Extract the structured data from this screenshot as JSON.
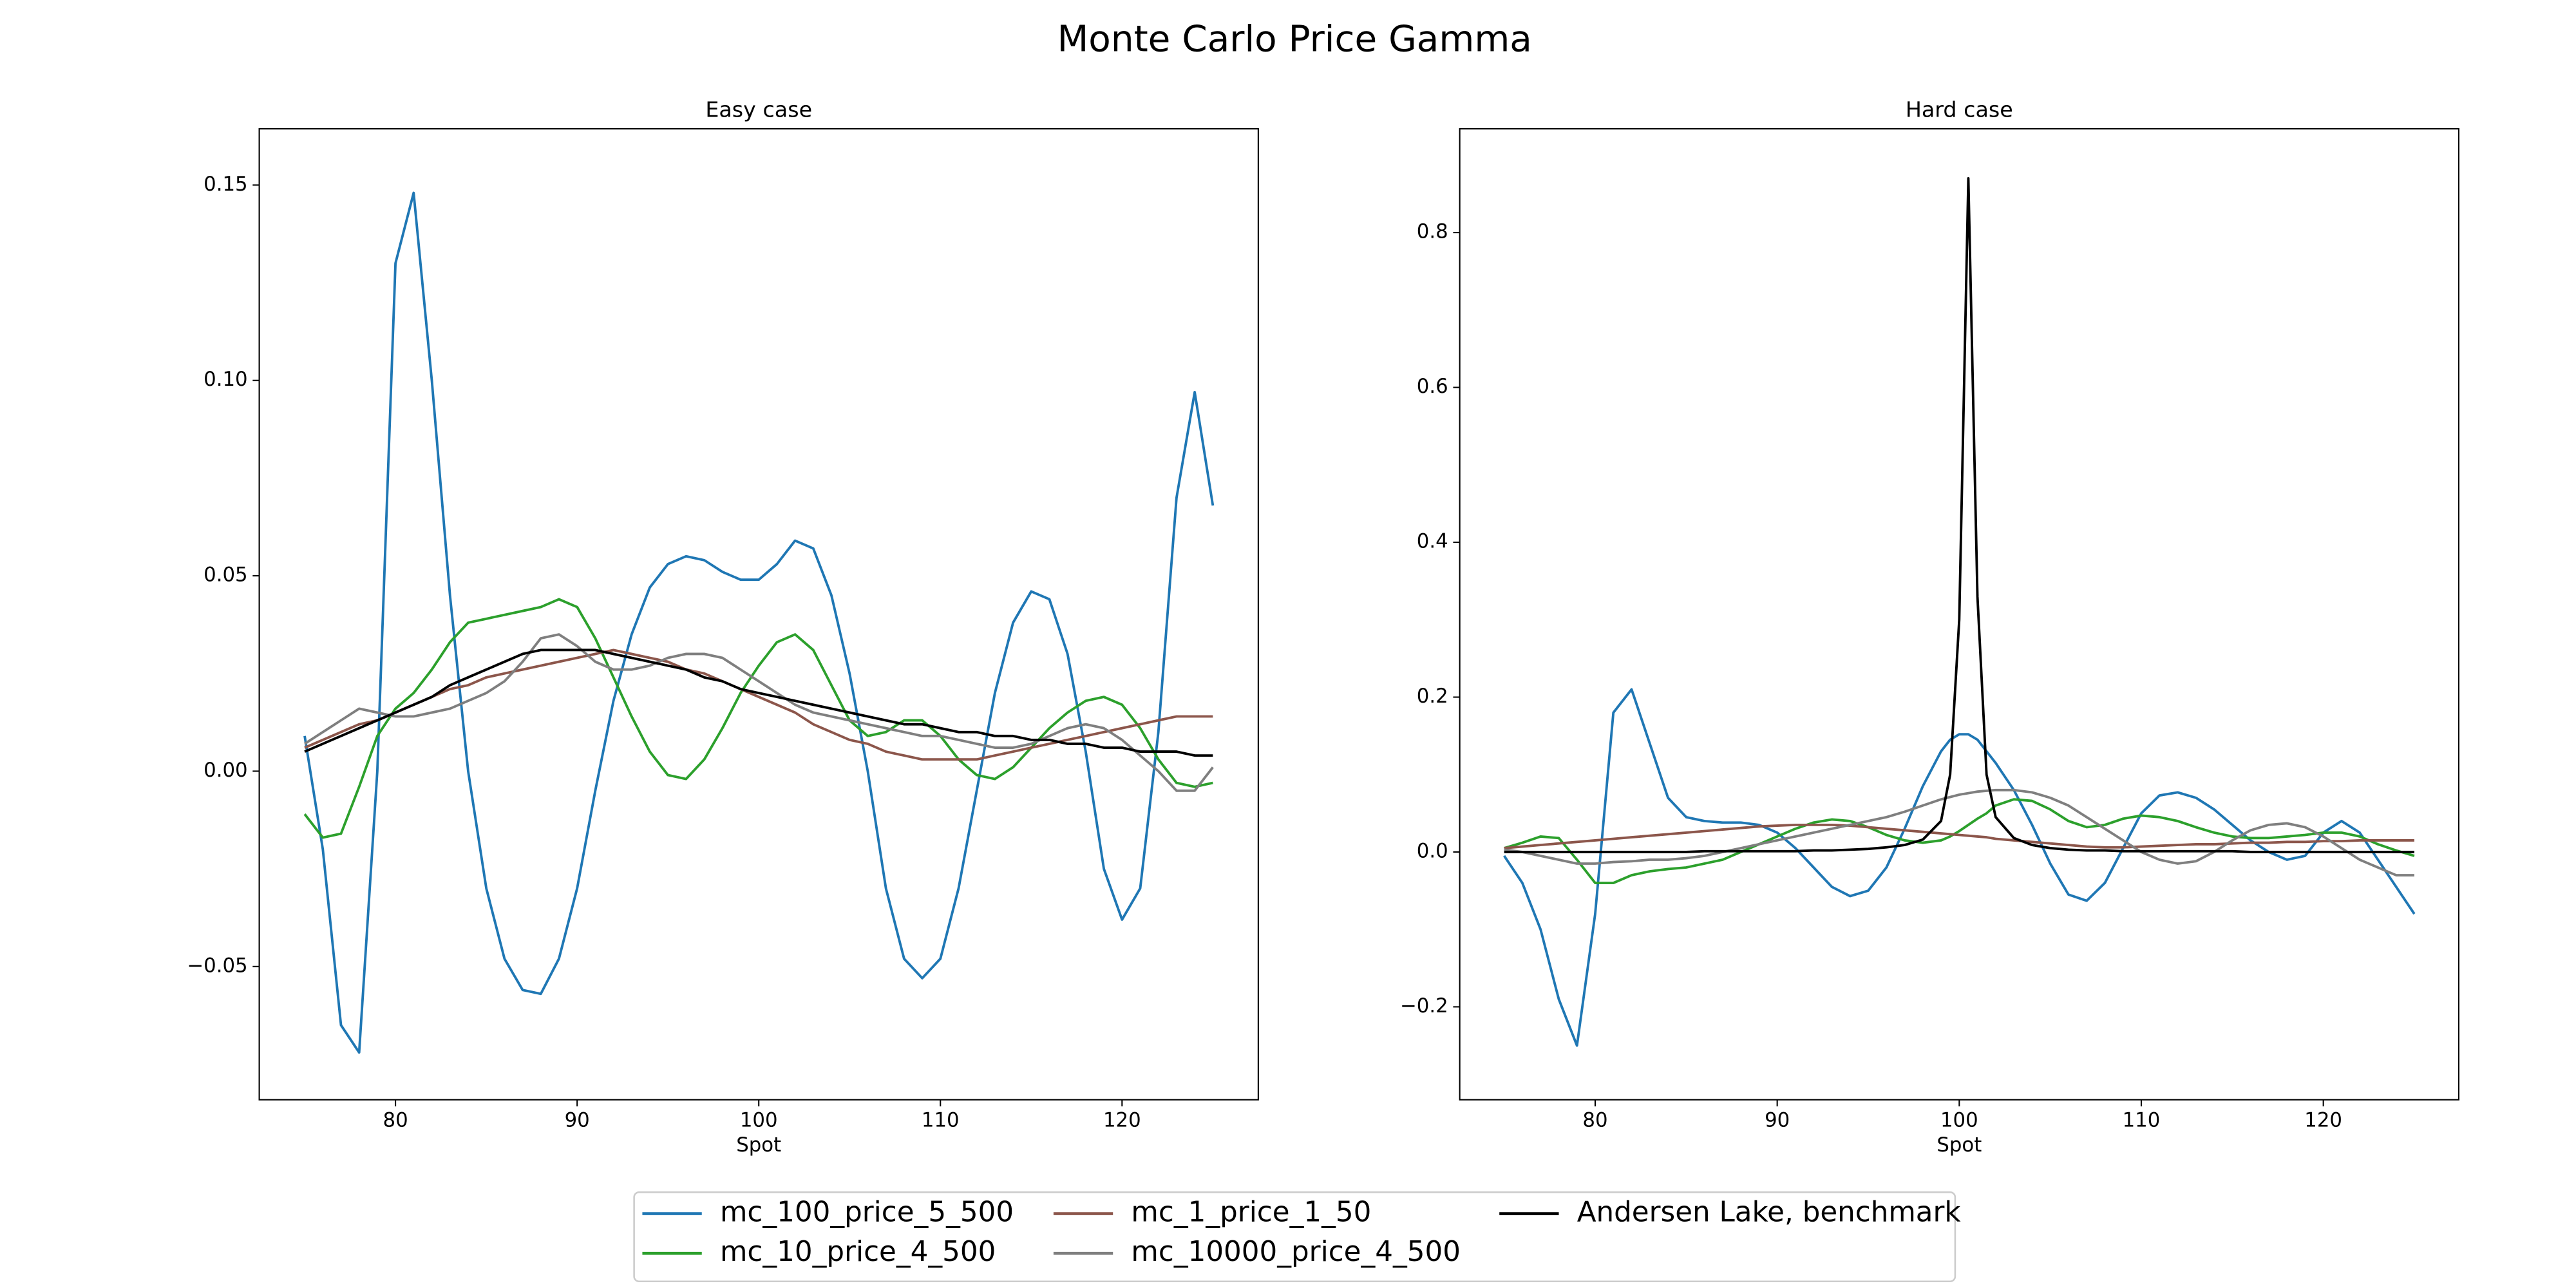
{
  "title": "Monte Carlo Price Gamma",
  "chart_data": [
    {
      "type": "line",
      "title": "Easy case",
      "xlabel": "Spot",
      "x": [
        75,
        76,
        77,
        78,
        79,
        80,
        81,
        82,
        83,
        84,
        85,
        86,
        87,
        88,
        89,
        90,
        91,
        92,
        93,
        94,
        95,
        96,
        97,
        98,
        99,
        100,
        101,
        102,
        103,
        104,
        105,
        106,
        107,
        108,
        109,
        110,
        111,
        112,
        113,
        114,
        115,
        116,
        117,
        118,
        119,
        120,
        121,
        122,
        123,
        124,
        125
      ],
      "xlim": [
        72.5,
        127.5
      ],
      "xticks": [
        80,
        90,
        100,
        110,
        120
      ],
      "ylim": [
        -0.0841,
        0.1644
      ],
      "yticks": [
        {
          "value": -0.05,
          "label": "−0.05"
        },
        {
          "value": 0,
          "label": "0.00"
        },
        {
          "value": 0.05,
          "label": "0.05"
        },
        {
          "value": 0.1,
          "label": "0.10"
        },
        {
          "value": 0.15,
          "label": "0.15"
        }
      ],
      "series": [
        {
          "name": "mc_100_price_5_500",
          "color": "#1f77b4",
          "values": [
            0.009,
            -0.02,
            -0.065,
            -0.072,
            0,
            0.13,
            0.148,
            0.1,
            0.045,
            0,
            -0.03,
            -0.048,
            -0.056,
            -0.057,
            -0.048,
            -0.03,
            -0.005,
            0.018,
            0.035,
            0.047,
            0.053,
            0.055,
            0.054,
            0.051,
            0.049,
            0.049,
            0.053,
            0.059,
            0.057,
            0.045,
            0.025,
            0,
            -0.03,
            -0.048,
            -0.053,
            -0.048,
            -0.03,
            -0.005,
            0.02,
            0.038,
            0.046,
            0.044,
            0.03,
            0.005,
            -0.025,
            -0.038,
            -0.03,
            0.01,
            0.07,
            0.097,
            0.068
          ]
        },
        {
          "name": "mc_10_price_4_500",
          "color": "#2ca02c",
          "values": [
            -0.011,
            -0.017,
            -0.016,
            -0.004,
            0.009,
            0.016,
            0.02,
            0.026,
            0.033,
            0.038,
            0.039,
            0.04,
            0.041,
            0.042,
            0.044,
            0.042,
            0.034,
            0.024,
            0.014,
            0.005,
            -0.001,
            -0.002,
            0.003,
            0.011,
            0.02,
            0.027,
            0.033,
            0.035,
            0.031,
            0.022,
            0.013,
            0.009,
            0.01,
            0.013,
            0.013,
            0.009,
            0.003,
            -0.001,
            -0.002,
            0.001,
            0.006,
            0.011,
            0.015,
            0.018,
            0.019,
            0.017,
            0.011,
            0.003,
            -0.003,
            -0.004,
            -0.003
          ]
        },
        {
          "name": "mc_1_price_1_50",
          "color": "#8c564b",
          "values": [
            0.006,
            0.008,
            0.01,
            0.012,
            0.013,
            0.015,
            0.017,
            0.019,
            0.021,
            0.022,
            0.024,
            0.025,
            0.026,
            0.027,
            0.028,
            0.029,
            0.03,
            0.031,
            0.03,
            0.029,
            0.028,
            0.026,
            0.025,
            0.023,
            0.021,
            0.019,
            0.017,
            0.015,
            0.012,
            0.01,
            0.008,
            0.007,
            0.005,
            0.004,
            0.003,
            0.003,
            0.003,
            0.003,
            0.004,
            0.005,
            0.006,
            0.007,
            0.008,
            0.009,
            0.01,
            0.011,
            0.012,
            0.013,
            0.014,
            0.014,
            0.014
          ]
        },
        {
          "name": "mc_10000_price_4_500",
          "color": "#7f7f7f",
          "values": [
            0.007,
            0.01,
            0.013,
            0.016,
            0.015,
            0.014,
            0.014,
            0.015,
            0.016,
            0.018,
            0.02,
            0.023,
            0.028,
            0.034,
            0.035,
            0.032,
            0.028,
            0.026,
            0.026,
            0.027,
            0.029,
            0.03,
            0.03,
            0.029,
            0.026,
            0.023,
            0.02,
            0.017,
            0.015,
            0.014,
            0.013,
            0.012,
            0.011,
            0.01,
            0.009,
            0.009,
            0.008,
            0.007,
            0.006,
            0.006,
            0.007,
            0.009,
            0.011,
            0.012,
            0.011,
            0.008,
            0.004,
            0,
            -0.005,
            -0.005,
            0.001
          ]
        },
        {
          "name": "Andersen Lake, benchmark",
          "color": "#000000",
          "values": [
            0.005,
            0.007,
            0.009,
            0.011,
            0.013,
            0.015,
            0.017,
            0.019,
            0.022,
            0.024,
            0.026,
            0.028,
            0.03,
            0.031,
            0.031,
            0.031,
            0.031,
            0.03,
            0.029,
            0.028,
            0.027,
            0.026,
            0.024,
            0.023,
            0.021,
            0.02,
            0.019,
            0.018,
            0.017,
            0.016,
            0.015,
            0.014,
            0.013,
            0.012,
            0.012,
            0.011,
            0.01,
            0.01,
            0.009,
            0.009,
            0.008,
            0.008,
            0.007,
            0.007,
            0.006,
            0.006,
            0.005,
            0.005,
            0.005,
            0.004,
            0.004
          ]
        }
      ]
    },
    {
      "type": "line",
      "title": "Hard case",
      "xlabel": "Spot",
      "x": [
        75,
        76,
        77,
        78,
        79,
        80,
        81,
        82,
        83,
        84,
        85,
        86,
        87,
        88,
        89,
        90,
        91,
        92,
        93,
        94,
        95,
        96,
        97,
        98,
        99,
        99.5,
        100,
        100.5,
        101,
        101.5,
        102,
        103,
        104,
        105,
        106,
        107,
        108,
        109,
        110,
        111,
        112,
        113,
        114,
        115,
        116,
        117,
        118,
        119,
        120,
        121,
        122,
        123,
        124,
        125
      ],
      "xlim": [
        72.56,
        127.44
      ],
      "xticks": [
        80,
        90,
        100,
        110,
        120
      ],
      "ylim": [
        -0.32,
        0.934
      ],
      "yticks": [
        {
          "value": -0.2,
          "label": "−0.2"
        },
        {
          "value": 0,
          "label": "0.0"
        },
        {
          "value": 0.2,
          "label": "0.2"
        },
        {
          "value": 0.4,
          "label": "0.4"
        },
        {
          "value": 0.6,
          "label": "0.6"
        },
        {
          "value": 0.8,
          "label": "0.8"
        }
      ],
      "series": [
        {
          "color": "#1f77b4",
          "values": [
            -0.005,
            -0.04,
            -0.1,
            -0.19,
            -0.25,
            -0.08,
            0.18,
            0.21,
            0.14,
            0.07,
            0.045,
            0.04,
            0.038,
            0.038,
            0.035,
            0.025,
            0.005,
            -0.02,
            -0.045,
            -0.057,
            -0.05,
            -0.02,
            0.03,
            0.085,
            0.13,
            0.145,
            0.152,
            0.152,
            0.145,
            0.13,
            0.115,
            0.08,
            0.035,
            -0.015,
            -0.055,
            -0.063,
            -0.04,
            0.005,
            0.05,
            0.073,
            0.077,
            0.07,
            0.055,
            0.035,
            0.015,
            0,
            -0.01,
            -0.005,
            0.025,
            0.04,
            0.025,
            -0.01,
            -0.045,
            -0.08
          ]
        },
        {
          "color": "#2ca02c",
          "values": [
            0.005,
            0.012,
            0.02,
            0.018,
            -0.01,
            -0.04,
            -0.04,
            -0.03,
            -0.025,
            -0.022,
            -0.02,
            -0.015,
            -0.01,
            0,
            0.01,
            0.02,
            0.03,
            0.038,
            0.042,
            0.04,
            0.032,
            0.022,
            0.015,
            0.012,
            0.015,
            0.02,
            0.027,
            0.035,
            0.043,
            0.05,
            0.06,
            0.068,
            0.066,
            0.055,
            0.04,
            0.032,
            0.035,
            0.043,
            0.047,
            0.045,
            0.04,
            0.032,
            0.025,
            0.02,
            0.018,
            0.018,
            0.02,
            0.022,
            0.025,
            0.025,
            0.02,
            0.01,
            0.002,
            -0.005
          ]
        },
        {
          "color": "#8c564b",
          "values": [
            0.005,
            0.007,
            0.009,
            0.011,
            0.013,
            0.015,
            0.017,
            0.019,
            0.021,
            0.023,
            0.025,
            0.027,
            0.029,
            0.031,
            0.033,
            0.034,
            0.035,
            0.035,
            0.035,
            0.034,
            0.032,
            0.03,
            0.028,
            0.026,
            0.024,
            0.023,
            0.022,
            0.021,
            0.02,
            0.019,
            0.017,
            0.015,
            0.013,
            0.011,
            0.009,
            0.007,
            0.006,
            0.006,
            0.007,
            0.008,
            0.009,
            0.01,
            0.01,
            0.011,
            0.012,
            0.012,
            0.013,
            0.013,
            0.014,
            0.014,
            0.015,
            0.015,
            0.015,
            0.015
          ]
        },
        {
          "color": "#7f7f7f",
          "values": [
            0.003,
            0,
            -0.005,
            -0.01,
            -0.015,
            -0.015,
            -0.013,
            -0.012,
            -0.01,
            -0.01,
            -0.008,
            -0.005,
            0,
            0.005,
            0.01,
            0.015,
            0.02,
            0.025,
            0.03,
            0.035,
            0.04,
            0.045,
            0.052,
            0.06,
            0.068,
            0.071,
            0.074,
            0.076,
            0.078,
            0.079,
            0.08,
            0.08,
            0.077,
            0.07,
            0.06,
            0.045,
            0.03,
            0.015,
            0,
            -0.01,
            -0.015,
            -0.012,
            0,
            0.015,
            0.028,
            0.035,
            0.037,
            0.032,
            0.02,
            0.005,
            -0.01,
            -0.02,
            -0.03,
            -0.03
          ]
        },
        {
          "color": "#000000",
          "values": [
            0,
            0,
            0,
            0,
            0,
            0,
            0,
            0,
            0,
            0,
            0,
            0.001,
            0.001,
            0.001,
            0.001,
            0.001,
            0.001,
            0.002,
            0.002,
            0.003,
            0.004,
            0.006,
            0.009,
            0.016,
            0.04,
            0.1,
            0.3,
            0.87,
            0.33,
            0.1,
            0.045,
            0.018,
            0.009,
            0.005,
            0.003,
            0.002,
            0.002,
            0.001,
            0.001,
            0.001,
            0.001,
            0.001,
            0.001,
            0.001,
            0,
            0,
            0,
            0,
            0,
            0,
            0,
            0,
            0,
            0
          ]
        }
      ]
    }
  ]
}
